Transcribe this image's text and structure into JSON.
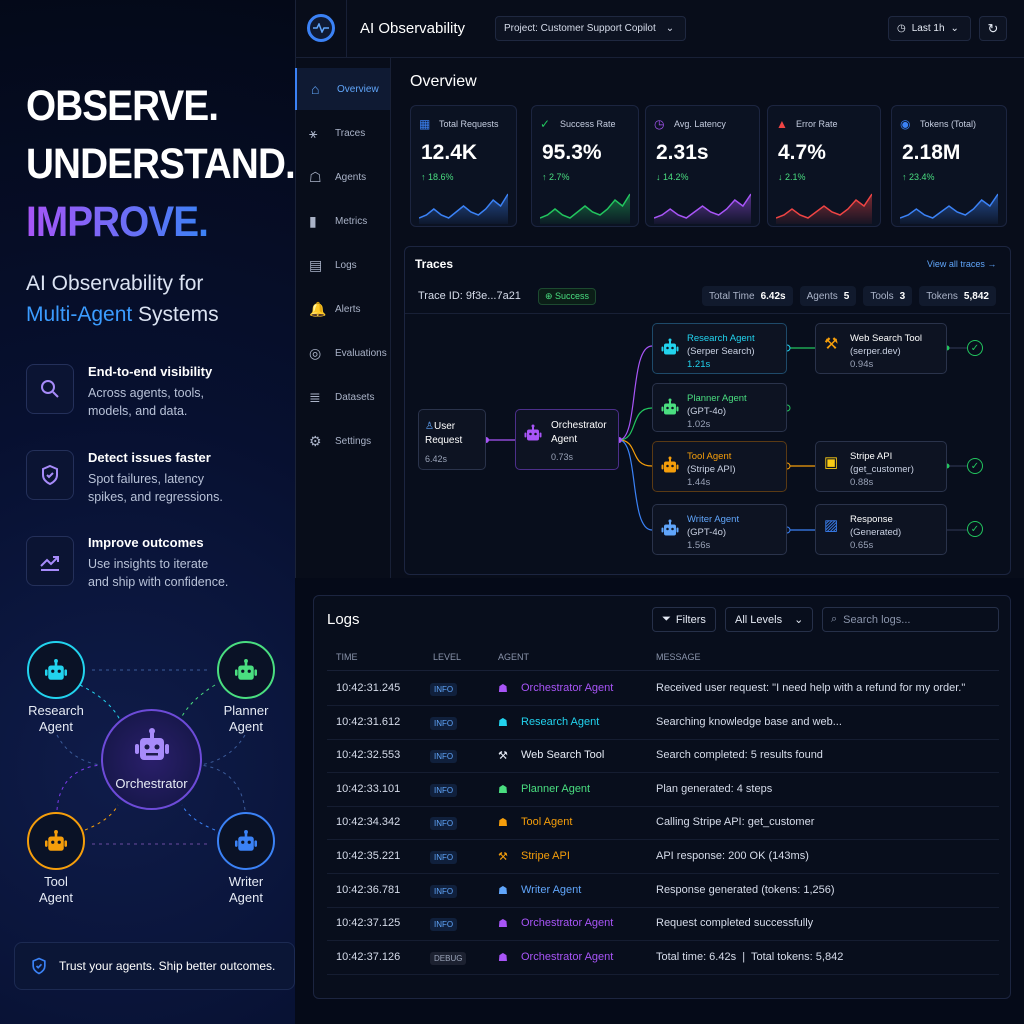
{
  "hero": {
    "line1": "OBSERVE.",
    "line2": "UNDERSTAND.",
    "line3": "IMPROVE.",
    "sub1": "AI Observability for",
    "sub2a": "Multi-Agent",
    "sub2b": " Systems"
  },
  "features": [
    {
      "title": "End-to-end visibility",
      "desc1": "Across agents, tools,",
      "desc2": "models, and data.",
      "icon": "search-icon"
    },
    {
      "title": "Detect issues faster",
      "desc1": "Spot failures, latency",
      "desc2": "spikes, and regressions.",
      "icon": "shield-check-icon"
    },
    {
      "title": "Improve outcomes",
      "desc1": "Use insights to iterate",
      "desc2": "and ship with confidence.",
      "icon": "trend-up-icon"
    }
  ],
  "agent_diagram": {
    "center": "Orchestrator",
    "agents": [
      {
        "l1": "Research",
        "l2": "Agent",
        "color": "#22d3ee"
      },
      {
        "l1": "Planner",
        "l2": "Agent",
        "color": "#4ade80"
      },
      {
        "l1": "Tool",
        "l2": "Agent",
        "color": "#f59e0b"
      },
      {
        "l1": "Writer",
        "l2": "Agent",
        "color": "#3b82f6"
      }
    ]
  },
  "banner": "Trust your agents. Ship better outcomes.",
  "header": {
    "title": "AI Observability",
    "project": "Project: Customer Support Copilot",
    "time": "Last 1h"
  },
  "sidebar": [
    "Overview",
    "Traces",
    "Agents",
    "Metrics",
    "Logs",
    "Alerts",
    "Evaluations",
    "Datasets",
    "Settings"
  ],
  "overview": {
    "title": "Overview",
    "metrics": [
      {
        "label": "Total Requests",
        "value": "12.4K",
        "delta": "↑ 18.6%",
        "color": "#3b82f6",
        "spark": [
          2,
          3,
          5,
          3,
          2,
          4,
          6,
          4,
          3,
          5,
          8,
          6,
          10
        ]
      },
      {
        "label": "Success Rate",
        "value": "95.3%",
        "delta": "↑ 2.7%",
        "color": "#22c55e",
        "spark": [
          2,
          3,
          5,
          3,
          2,
          4,
          6,
          4,
          3,
          5,
          8,
          6,
          10
        ]
      },
      {
        "label": "Avg. Latency",
        "value": "2.31s",
        "delta": "↓ 14.2%",
        "color": "#a855f7",
        "spark": [
          2,
          3,
          5,
          3,
          2,
          4,
          6,
          4,
          3,
          5,
          8,
          6,
          10
        ]
      },
      {
        "label": "Error Rate",
        "value": "4.7%",
        "delta": "↓ 2.1%",
        "color": "#ef4444",
        "spark": [
          2,
          3,
          5,
          3,
          2,
          4,
          6,
          4,
          3,
          5,
          8,
          6,
          10
        ]
      },
      {
        "label": "Tokens (Total)",
        "value": "2.18M",
        "delta": "↑ 23.4%",
        "color": "#3b82f6",
        "spark": [
          2,
          3,
          5,
          3,
          2,
          4,
          6,
          4,
          3,
          5,
          8,
          6,
          10
        ]
      }
    ]
  },
  "traces": {
    "title": "Traces",
    "view_all": "View all traces →",
    "trace_id": "Trace ID: 9f3e...7a21",
    "status": "Success",
    "stats": [
      {
        "k": "Total Time",
        "v": "6.42s"
      },
      {
        "k": "Agents",
        "v": "5"
      },
      {
        "k": "Tools",
        "v": "3"
      },
      {
        "k": "Tokens",
        "v": "5,842"
      }
    ],
    "nodes": {
      "user": {
        "n1": "User",
        "n2": "Request",
        "t": "6.42s"
      },
      "orch": {
        "n1": "Orchestrator",
        "n2": "Agent",
        "t": "0.73s"
      },
      "research": {
        "n": "Research Agent",
        "s": "(Serper Search)",
        "t": "1.21s"
      },
      "planner": {
        "n": "Planner Agent",
        "s": "(GPT-4o)",
        "t": "1.02s"
      },
      "tool": {
        "n": "Tool Agent",
        "s": "(Stripe API)",
        "t": "1.44s"
      },
      "writer": {
        "n": "Writer Agent",
        "s": "(GPT-4o)",
        "t": "1.56s"
      },
      "websearch": {
        "n": "Web Search Tool",
        "s": "(serper.dev)",
        "t": "0.94s"
      },
      "stripe": {
        "n": "Stripe API",
        "s": "(get_customer)",
        "t": "0.88s"
      },
      "response": {
        "n": "Response",
        "s": "(Generated)",
        "t": "0.65s"
      }
    }
  },
  "logs": {
    "title": "Logs",
    "filters": "Filters",
    "level": "All Levels",
    "search_placeholder": "Search logs...",
    "columns": [
      "TIME",
      "LEVEL",
      "AGENT",
      "MESSAGE"
    ],
    "rows": [
      {
        "time": "10:42:31.245",
        "level": "INFO",
        "agent": "Orchestrator Agent",
        "color": "#a855f7",
        "msg": "Received user request: \"I need help with a refund for my order.\""
      },
      {
        "time": "10:42:31.612",
        "level": "INFO",
        "agent": "Research Agent",
        "color": "#22d3ee",
        "msg": "Searching knowledge base and web..."
      },
      {
        "time": "10:42:32.553",
        "level": "INFO",
        "agent": "Web Search Tool",
        "color": "#e6ebf5",
        "msg": "Search completed: 5 results found"
      },
      {
        "time": "10:42:33.101",
        "level": "INFO",
        "agent": "Planner Agent",
        "color": "#4ade80",
        "msg": "Plan generated: 4 steps"
      },
      {
        "time": "10:42:34.342",
        "level": "INFO",
        "agent": "Tool Agent",
        "color": "#f59e0b",
        "msg": "Calling Stripe API: get_customer"
      },
      {
        "time": "10:42:35.221",
        "level": "INFO",
        "agent": "Stripe API",
        "color": "#f59e0b",
        "msg": "API response: 200 OK (143ms)"
      },
      {
        "time": "10:42:36.781",
        "level": "INFO",
        "agent": "Writer Agent",
        "color": "#60a5fa",
        "msg": "Response generated (tokens: 1,256)"
      },
      {
        "time": "10:42:37.125",
        "level": "INFO",
        "agent": "Orchestrator Agent",
        "color": "#a855f7",
        "msg": "Request completed successfully"
      },
      {
        "time": "10:42:37.126",
        "level": "DEBUG",
        "agent": "Orchestrator Agent",
        "color": "#a855f7",
        "msg": "Total time: 6.42s  |  Total tokens: 5,842"
      }
    ]
  }
}
